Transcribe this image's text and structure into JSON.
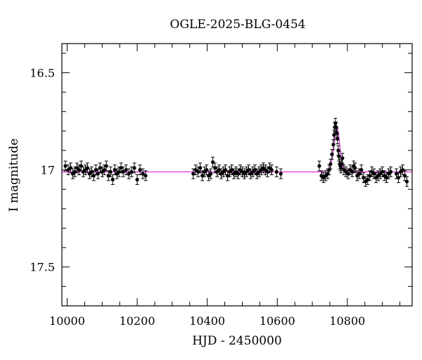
{
  "chart_data": {
    "type": "scatter",
    "title": "OGLE-2025-BLG-0454",
    "xlabel": "HJD - 2450000",
    "ylabel": "I magnitude",
    "xlim": [
      9985,
      10985
    ],
    "ylim": [
      17.7,
      16.35
    ],
    "y_inverted": true,
    "xticks": [
      10000,
      10200,
      10400,
      10600,
      10800
    ],
    "xtick_labels": [
      "10000",
      "10200",
      "10400",
      "10600",
      "10800"
    ],
    "yticks": [
      16.5,
      17,
      17.5
    ],
    "ytick_labels": [
      "16.5",
      "17",
      "17.5"
    ],
    "grid": false,
    "colors": {
      "points": "#000000",
      "model": "#e040e0"
    },
    "series": [
      {
        "marker": "filled-circle-with-errorbars",
        "x": [
          9995,
          10003,
          10010,
          10016,
          10022,
          10028,
          10034,
          10040,
          10046,
          10052,
          10058,
          10064,
          10070,
          10076,
          10082,
          10088,
          10094,
          10100,
          10106,
          10112,
          10118,
          10124,
          10130,
          10136,
          10142,
          10148,
          10154,
          10160,
          10168,
          10176,
          10184,
          10192,
          10200,
          10208,
          10216,
          10224,
          10360,
          10367,
          10374,
          10380,
          10386,
          10392,
          10398,
          10404,
          10410,
          10416,
          10422,
          10428,
          10434,
          10440,
          10446,
          10452,
          10458,
          10464,
          10470,
          10476,
          10482,
          10488,
          10494,
          10500,
          10506,
          10512,
          10518,
          10524,
          10530,
          10536,
          10542,
          10548,
          10554,
          10560,
          10566,
          10572,
          10578,
          10584,
          10598,
          10610,
          10720,
          10726,
          10732,
          10738,
          10744,
          10748,
          10752,
          10756,
          10760,
          10762,
          10764,
          10766,
          10768,
          10770,
          10772,
          10774,
          10776,
          10778,
          10780,
          10782,
          10784,
          10786,
          10790,
          10796,
          10802,
          10808,
          10814,
          10818,
          10822,
          10828,
          10834,
          10840,
          10846,
          10852,
          10858,
          10864,
          10870,
          10876,
          10882,
          10888,
          10894,
          10900,
          10906,
          10912,
          10918,
          10924,
          10940,
          10946,
          10952,
          10958,
          10964,
          10970
        ],
        "y": [
          16.98,
          17.0,
          16.99,
          17.02,
          17.01,
          16.99,
          17.0,
          16.98,
          17.01,
          17.0,
          16.99,
          17.02,
          17.01,
          17.03,
          17.0,
          17.02,
          16.99,
          17.01,
          17.0,
          16.98,
          17.03,
          17.01,
          17.05,
          17.0,
          17.02,
          17.01,
          16.99,
          17.01,
          17.0,
          17.02,
          17.01,
          16.99,
          17.05,
          17.0,
          17.02,
          17.03,
          17.02,
          17.0,
          17.01,
          16.99,
          17.03,
          17.01,
          17.0,
          17.03,
          17.02,
          16.96,
          16.99,
          17.01,
          17.0,
          17.02,
          17.01,
          17.0,
          17.03,
          17.01,
          17.0,
          17.02,
          17.01,
          17.02,
          17.0,
          17.01,
          17.02,
          17.01,
          17.0,
          17.02,
          17.01,
          17.0,
          17.02,
          17.01,
          17.0,
          16.99,
          17.0,
          17.01,
          16.99,
          17.0,
          17.01,
          17.02,
          16.98,
          17.03,
          17.04,
          17.03,
          17.02,
          17.0,
          16.97,
          16.92,
          16.87,
          16.82,
          16.78,
          16.76,
          16.78,
          16.81,
          16.84,
          16.9,
          16.93,
          16.97,
          16.98,
          16.99,
          16.97,
          16.94,
          17.0,
          17.01,
          17.02,
          17.0,
          17.01,
          16.98,
          16.99,
          17.03,
          17.02,
          17.0,
          17.04,
          17.06,
          17.05,
          17.03,
          17.01,
          17.02,
          17.04,
          17.03,
          17.02,
          17.01,
          17.03,
          17.04,
          17.02,
          17.01,
          17.02,
          17.04,
          17.01,
          17.0,
          17.03,
          17.06
        ]
      }
    ],
    "model_curve": {
      "x": [
        9985,
        10700,
        10730,
        10745,
        10752,
        10758,
        10762,
        10765,
        10768,
        10770,
        10772,
        10775,
        10778,
        10782,
        10787,
        10795,
        10810,
        10850,
        10985
      ],
      "y": [
        17.01,
        17.01,
        17.01,
        17.0,
        16.98,
        16.93,
        16.87,
        16.82,
        16.79,
        16.78,
        16.79,
        16.82,
        16.87,
        16.93,
        16.98,
        17.0,
        17.01,
        17.01,
        17.01
      ]
    }
  }
}
